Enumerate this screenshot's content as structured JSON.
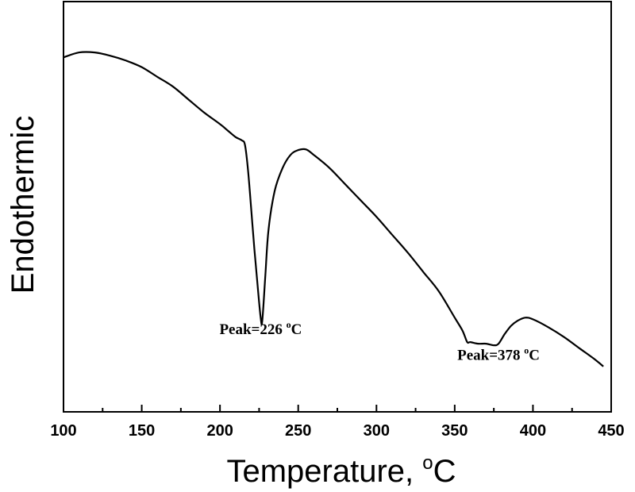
{
  "chart_data": {
    "type": "line",
    "title": "",
    "xlabel": "Temperature, ",
    "xlabel_sup": "o",
    "xlabel_tail": "C",
    "ylabel": "Endothermic",
    "xlim": [
      100,
      450
    ],
    "ylim": [
      0,
      1
    ],
    "y_ticks_shown": false,
    "grid": false,
    "x_ticks": [
      100,
      150,
      200,
      250,
      300,
      350,
      400,
      450
    ],
    "x_tick_labels": [
      "100",
      "150",
      "200",
      "250",
      "300",
      "350",
      "400",
      "450"
    ],
    "series": [
      {
        "x": [
          100,
          110,
          120,
          130,
          140,
          150,
          160,
          170,
          180,
          190,
          200,
          205,
          210,
          214,
          216,
          218,
          220,
          222,
          224,
          226,
          227,
          229,
          231,
          235,
          240,
          245,
          250,
          255,
          260,
          270,
          280,
          290,
          300,
          310,
          320,
          330,
          340,
          350,
          355,
          358,
          360,
          365,
          370,
          375,
          378,
          382,
          386,
          390,
          395,
          400,
          410,
          420,
          430,
          440,
          445
        ],
        "y": [
          0.97,
          0.985,
          0.985,
          0.975,
          0.96,
          0.94,
          0.91,
          0.88,
          0.84,
          0.8,
          0.765,
          0.745,
          0.725,
          0.715,
          0.7,
          0.62,
          0.5,
          0.38,
          0.27,
          0.17,
          0.16,
          0.3,
          0.44,
          0.56,
          0.63,
          0.67,
          0.685,
          0.687,
          0.67,
          0.63,
          0.58,
          0.53,
          0.48,
          0.425,
          0.37,
          0.31,
          0.25,
          0.17,
          0.13,
          0.095,
          0.095,
          0.09,
          0.09,
          0.085,
          0.09,
          0.12,
          0.145,
          0.16,
          0.17,
          0.165,
          0.14,
          0.11,
          0.075,
          0.04,
          0.02
        ]
      }
    ],
    "annotations": [
      {
        "text": "Peak=226 ",
        "sup": "o",
        "tail": "C",
        "x": 226,
        "y": 0.12
      },
      {
        "text": "Peak=378 ",
        "sup": "o",
        "tail": "C",
        "x": 378,
        "y": 0.04
      }
    ]
  }
}
